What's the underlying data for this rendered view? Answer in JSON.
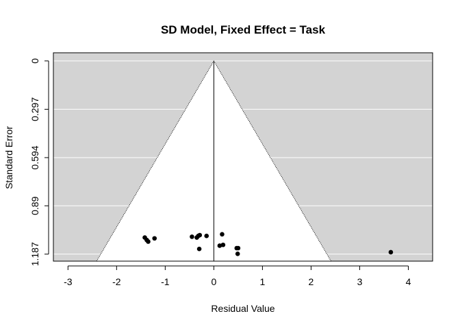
{
  "chart_data": {
    "type": "scatter",
    "subtype": "funnel",
    "title": "SD Model, Fixed Effect = Task",
    "xlabel": "Residual Value",
    "ylabel": "Standard Error",
    "xlim": [
      -3.3,
      4.5
    ],
    "ylim": [
      1.23,
      -0.05
    ],
    "y_reversed": true,
    "x_ticks": [
      -3,
      -2,
      -1,
      0,
      1,
      2,
      3,
      4
    ],
    "x_tick_labels": [
      "-3",
      "-2",
      "-1",
      "0",
      "1",
      "2",
      "3",
      "4"
    ],
    "y_ticks": [
      0,
      0.297,
      0.594,
      0.89,
      1.187
    ],
    "y_tick_labels": [
      "0",
      "0.297",
      "0.594",
      "0.89",
      "1.187"
    ],
    "funnel": {
      "center": 0,
      "se_max": 1.187,
      "z": 1.96,
      "inside_color": "#ffffff",
      "outside_color": "#d3d3d3"
    },
    "grid": true,
    "grid_color": "#ffffff",
    "point_color": "#000000",
    "points": [
      {
        "x": -1.42,
        "y": 1.085
      },
      {
        "x": -1.38,
        "y": 1.1
      },
      {
        "x": -1.35,
        "y": 1.11
      },
      {
        "x": -1.22,
        "y": 1.09
      },
      {
        "x": -0.45,
        "y": 1.08
      },
      {
        "x": -0.35,
        "y": 1.085
      },
      {
        "x": -0.32,
        "y": 1.075
      },
      {
        "x": -0.29,
        "y": 1.07
      },
      {
        "x": -0.3,
        "y": 1.155
      },
      {
        "x": -0.15,
        "y": 1.075
      },
      {
        "x": 0.12,
        "y": 1.135
      },
      {
        "x": 0.17,
        "y": 1.065
      },
      {
        "x": 0.19,
        "y": 1.13
      },
      {
        "x": 0.47,
        "y": 1.15
      },
      {
        "x": 0.5,
        "y": 1.15
      },
      {
        "x": 0.49,
        "y": 1.185
      },
      {
        "x": 3.64,
        "y": 1.175
      }
    ]
  }
}
